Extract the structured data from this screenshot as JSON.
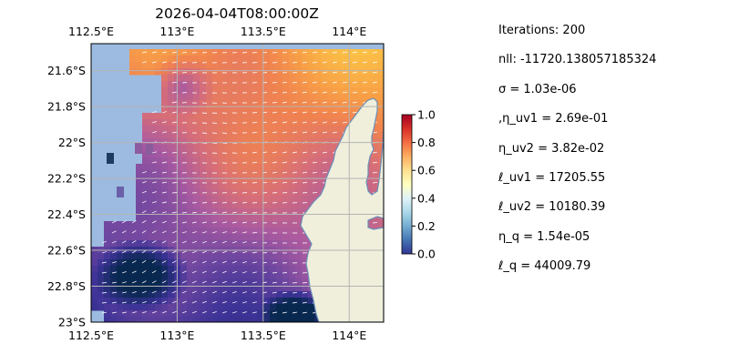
{
  "chart_data": {
    "type": "heatmap",
    "title": "2026-04-04T08:00:00Z",
    "xlabel": "",
    "ylabel": "",
    "x_range_deg_e": [
      112.5,
      114.2
    ],
    "y_range_deg_s": [
      21.45,
      23.0
    ],
    "x_ticks": [
      {
        "value": 112.5,
        "label": "112.5°E"
      },
      {
        "value": 113.0,
        "label": "113°E"
      },
      {
        "value": 113.5,
        "label": "113.5°E"
      },
      {
        "value": 114.0,
        "label": "114°E"
      }
    ],
    "y_ticks": [
      {
        "value": 21.6,
        "label": "21.6°S"
      },
      {
        "value": 21.8,
        "label": "21.8°S"
      },
      {
        "value": 22.0,
        "label": "22°S"
      },
      {
        "value": 22.2,
        "label": "22.2°S"
      },
      {
        "value": 22.4,
        "label": "22.4°S"
      },
      {
        "value": 22.6,
        "label": "22.6°S"
      },
      {
        "value": 22.8,
        "label": "22.8°S"
      },
      {
        "value": 23.0,
        "label": "23°S"
      }
    ],
    "grid": true,
    "colorbar": {
      "range": [
        0.0,
        1.0
      ],
      "ticks": [
        "0.0",
        "0.2",
        "0.4",
        "0.6",
        "0.8",
        "1.0"
      ],
      "colormap": "RdYlBu_r"
    },
    "overlay": "velocity-arrows"
  },
  "colors": {
    "ocean": "#9dbbe0",
    "land": "#efefdc",
    "coast": "#6b8fb8",
    "grid": "#b4b4b4",
    "arrow": "#ffffff"
  },
  "params": [
    "Iterations: 200",
    "nll: -11720.138057185324",
    "σ = 1.03e-06",
    ",η_uv1 = 2.69e-01",
    "η_uv2 = 3.82e-02",
    "ℓ_uv1 = 17205.55",
    "ℓ_uv2 = 10180.39",
    "η_q = 1.54e-05",
    "ℓ_q = 44009.79"
  ]
}
